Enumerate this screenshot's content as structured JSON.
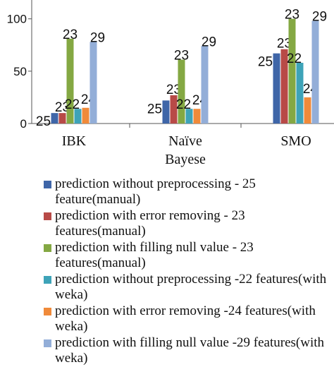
{
  "chart_data": {
    "type": "bar",
    "categories": [
      "IBK",
      "Naïve Bayese",
      "SMO"
    ],
    "category_lines": [
      [
        "IBK"
      ],
      [
        "Naïve",
        "Bayese"
      ],
      [
        "SMO"
      ]
    ],
    "yticks": [
      0,
      50,
      100
    ],
    "ylim": [
      0,
      118
    ],
    "series": [
      {
        "name": "prediction without  preprocessing - 25 feature(manual)",
        "color": "#3f66a8",
        "values": [
          10,
          22,
          67
        ],
        "labels": [
          "25",
          "25",
          "25"
        ]
      },
      {
        "name": "prediction with error removing - 23 features(manual)",
        "color": "#b84a47",
        "values": [
          10,
          27,
          71
        ],
        "labels": [
          "23",
          "23",
          "23"
        ]
      },
      {
        "name": "prediction with filling null value - 23 features(manual)",
        "color": "#84a843",
        "values": [
          81,
          61,
          100
        ],
        "labels": [
          "23",
          "23",
          "23"
        ]
      },
      {
        "name": "prediction without  preprocessing -22 features(with weka)",
        "color": "#3ea3b8",
        "values": [
          14,
          14,
          58
        ],
        "labels": [
          "22",
          "22",
          "22"
        ]
      },
      {
        "name": "prediction with error removing -24 features(with weka)",
        "color": "#f08a3a",
        "values": [
          15,
          14,
          25
        ],
        "labels": [
          "24",
          "24",
          "24"
        ]
      },
      {
        "name": "prediction with filling null value -29 features(with weka)",
        "color": "#93aed8",
        "values": [
          78,
          74,
          98
        ],
        "labels": [
          "29",
          "29",
          "29"
        ]
      }
    ]
  }
}
